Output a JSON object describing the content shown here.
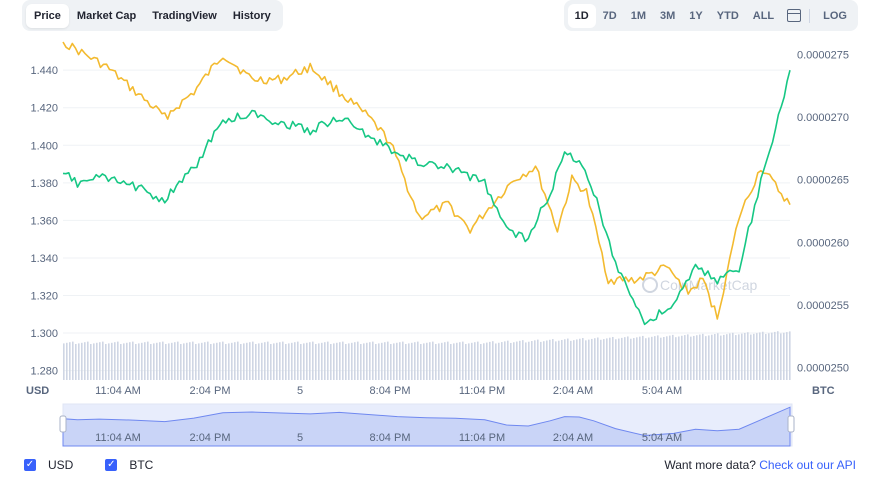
{
  "tabs": [
    "Price",
    "Market Cap",
    "TradingView",
    "History"
  ],
  "active_tab": "Price",
  "ranges": [
    "1D",
    "7D",
    "1M",
    "3M",
    "1Y",
    "YTD",
    "ALL"
  ],
  "active_range": "1D",
  "log_label": "LOG",
  "watermark": "CoinMarketCap",
  "legend": {
    "usd_label": "USD",
    "btc_label": "BTC"
  },
  "footer": {
    "prefix": "Want more data?",
    "link": "Check out our API"
  },
  "colors": {
    "usd": "#16c784",
    "btc": "#f3ba2f",
    "accent": "#3861fb",
    "volume": "#cfd6e4"
  },
  "chart_data": {
    "type": "line",
    "left_axis_label": "USD",
    "right_axis_label": "BTC",
    "left_ticks": [
      "1.440",
      "1.420",
      "1.400",
      "1.380",
      "1.360",
      "1.340",
      "1.320",
      "1.300",
      "1.280"
    ],
    "right_ticks": [
      "0.0000275",
      "0.0000270",
      "0.0000265",
      "0.0000260",
      "0.0000255",
      "0.0000250"
    ],
    "x_ticks": [
      "11:04 AM",
      "2:04 PM",
      "5",
      "8:04 PM",
      "11:04 PM",
      "2:04 AM",
      "5:04 AM"
    ],
    "left_range": [
      1.275,
      1.455
    ],
    "right_range": [
      2.49e-05,
      2.76e-05
    ],
    "grid": true,
    "series": [
      {
        "name": "USD",
        "axis": "left",
        "t": [
          0,
          2,
          5,
          10,
          14,
          18,
          22,
          26,
          30,
          34,
          38,
          42,
          46,
          50,
          54,
          58,
          61,
          64,
          67,
          69,
          71,
          73,
          76,
          80,
          84,
          87,
          90,
          93,
          96,
          100
        ],
        "values": [
          1.385,
          1.38,
          1.383,
          1.378,
          1.371,
          1.388,
          1.413,
          1.417,
          1.412,
          1.408,
          1.415,
          1.405,
          1.395,
          1.39,
          1.387,
          1.38,
          1.355,
          1.35,
          1.375,
          1.395,
          1.393,
          1.375,
          1.338,
          1.305,
          1.315,
          1.335,
          1.328,
          1.335,
          1.38,
          1.44
        ]
      },
      {
        "name": "BTC",
        "axis": "right",
        "t": [
          0,
          3,
          6,
          10,
          14,
          18,
          22,
          26,
          30,
          34,
          38,
          42,
          45,
          49,
          53,
          56,
          59,
          62,
          65,
          68,
          70,
          72,
          75,
          79,
          83,
          86,
          88,
          90,
          93,
          96,
          100
        ],
        "values": [
          2.76e-05,
          2.75e-05,
          2.74e-05,
          2.72e-05,
          2.7e-05,
          2.72e-05,
          2.75e-05,
          2.73e-05,
          2.73e-05,
          2.74e-05,
          2.72e-05,
          2.7e-05,
          2.68e-05,
          2.62e-05,
          2.63e-05,
          2.61e-05,
          2.63e-05,
          2.65e-05,
          2.66e-05,
          2.61e-05,
          2.65e-05,
          2.64e-05,
          2.57e-05,
          2.57e-05,
          2.58e-05,
          2.56e-05,
          2.57e-05,
          2.54e-05,
          2.62e-05,
          2.66e-05,
          2.63e-05
        ]
      }
    ]
  }
}
